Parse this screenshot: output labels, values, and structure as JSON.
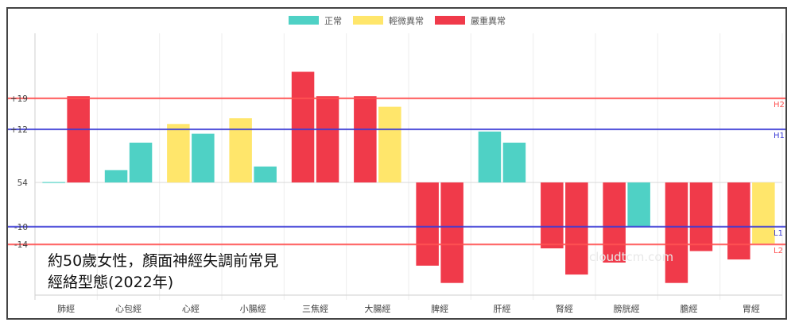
{
  "chart_data": {
    "type": "bar",
    "title": "約50歲女性，顏面神經失調前常見\n經絡型態(2022年)",
    "watermark": "cloudtcm.com",
    "legend_position": "top",
    "categories": [
      "肺經",
      "心包經",
      "心經",
      "小腸經",
      "三焦經",
      "大腸經",
      "脾經",
      "肝經",
      "腎經",
      "膀胱經",
      "膽經",
      "胃經"
    ],
    "baseline": 54,
    "y_ticks": [
      {
        "label": "+19",
        "offset": 19
      },
      {
        "label": "+12",
        "offset": 12
      },
      {
        "label": "54",
        "offset": 0
      },
      {
        "label": "-10",
        "offset": -10
      },
      {
        "label": "-14",
        "offset": -14
      }
    ],
    "reference_lines": [
      {
        "label": "H2",
        "offset": 19,
        "color": "#ff5252"
      },
      {
        "label": "H1",
        "offset": 12,
        "color": "#3b3bd6"
      },
      {
        "label": "L1",
        "offset": -10,
        "color": "#3b3bd6"
      },
      {
        "label": "L2",
        "offset": -14,
        "color": "#ff5252"
      }
    ],
    "legend": [
      {
        "name": "正常",
        "color": "#4fd1c5"
      },
      {
        "name": "輕微異常",
        "color": "#ffe66b"
      },
      {
        "name": "嚴重異常",
        "color": "#f03a4a"
      }
    ],
    "bars": [
      [
        {
          "offset": 0.1,
          "status": "正常"
        },
        {
          "offset": 19.5,
          "status": "嚴重異常"
        }
      ],
      [
        {
          "offset": 2.8,
          "status": "正常"
        },
        {
          "offset": 9.0,
          "status": "正常"
        }
      ],
      [
        {
          "offset": 13.2,
          "status": "輕微異常"
        },
        {
          "offset": 11.0,
          "status": "正常"
        }
      ],
      [
        {
          "offset": 14.5,
          "status": "輕微異常"
        },
        {
          "offset": 3.6,
          "status": "正常"
        }
      ],
      [
        {
          "offset": 25.0,
          "status": "嚴重異常"
        },
        {
          "offset": 19.5,
          "status": "嚴重異常"
        }
      ],
      [
        {
          "offset": 19.5,
          "status": "嚴重異常"
        },
        {
          "offset": 17.1,
          "status": "輕微異常"
        }
      ],
      [
        {
          "offset": -18.8,
          "status": "嚴重異常"
        },
        {
          "offset": -22.7,
          "status": "嚴重異常"
        }
      ],
      [
        {
          "offset": 11.5,
          "status": "正常"
        },
        {
          "offset": 9.0,
          "status": "正常"
        }
      ],
      [
        {
          "offset": -14.9,
          "status": "嚴重異常"
        },
        {
          "offset": -20.8,
          "status": "嚴重異常"
        }
      ],
      [
        {
          "offset": -18.1,
          "status": "嚴重異常"
        },
        {
          "offset": -10.0,
          "status": "正常"
        }
      ],
      [
        {
          "offset": -22.7,
          "status": "嚴重異常"
        },
        {
          "offset": -15.5,
          "status": "嚴重異常"
        }
      ],
      [
        {
          "offset": -17.4,
          "status": "嚴重異常"
        },
        {
          "offset": -13.8,
          "status": "輕微異常"
        }
      ]
    ]
  }
}
